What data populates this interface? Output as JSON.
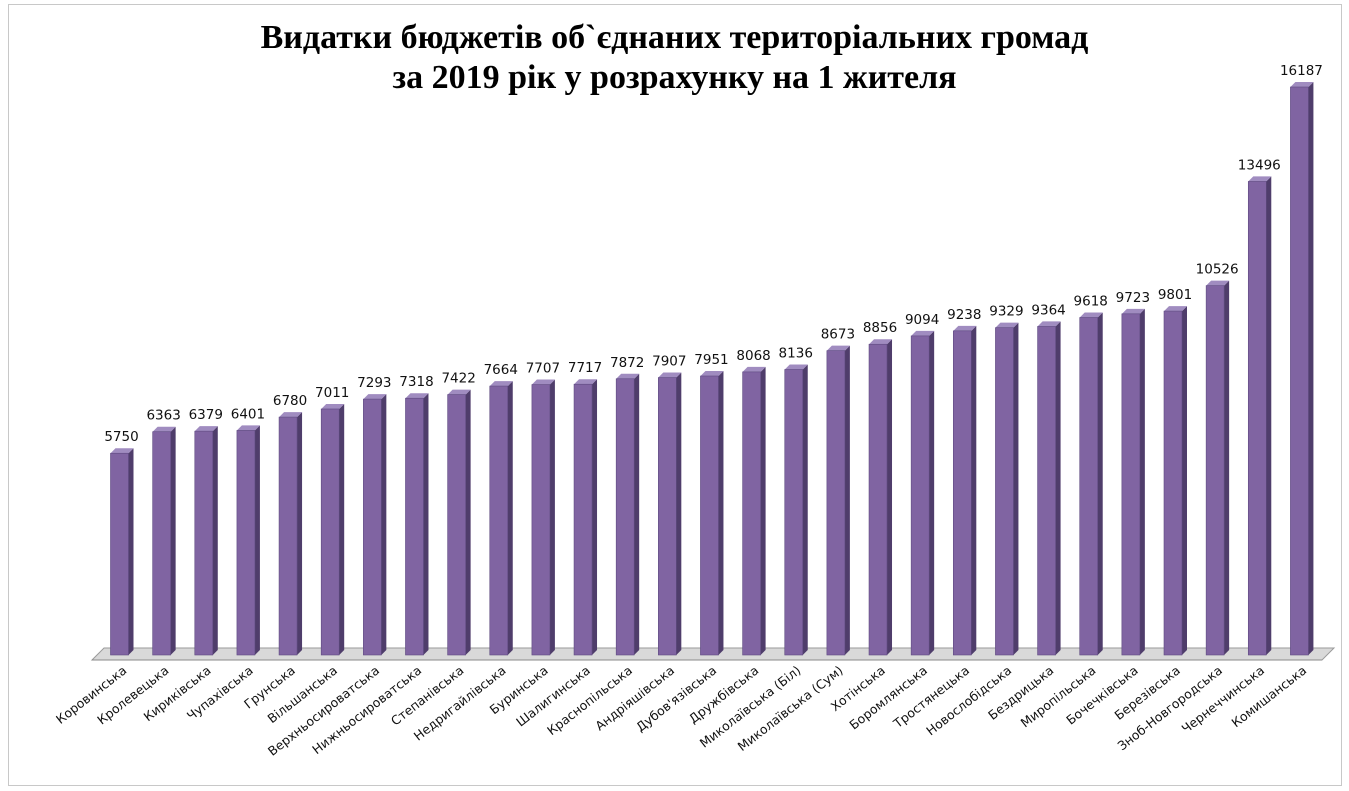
{
  "chart_data": {
    "type": "bar",
    "title": "Видатки бюджетів об`єднаних територіальних громад",
    "subtitle": "за 2019 рік у розрахунку на 1 жителя",
    "xlabel": "",
    "ylabel": "",
    "ylim": [
      0,
      16187
    ],
    "grid": false,
    "legend": "none",
    "categories": [
      "Коровинська",
      "Кролевецька",
      "Кириківська",
      "Чупахівська",
      "Грунська",
      "Вільшанська",
      "Верхньосироватська",
      "Нижньосироватська",
      "Степанівська",
      "Недригайлівська",
      "Буринська",
      "Шалигинська",
      "Краснопільська",
      "Андріяшівська",
      "Дубов'язівська",
      "Дружбівська",
      "Миколаївська (Біл)",
      "Миколаївська (Сум)",
      "Хотінська",
      "Боромлянська",
      "Тростянецька",
      "Новослобідська",
      "Бездрицька",
      "Миропільська",
      "Бочечківська",
      "Березівська",
      "Зноб-Новгородська",
      "Чернеччинська",
      "Комишанська"
    ],
    "values": [
      5750,
      6363,
      6379,
      6401,
      6780,
      7011,
      7293,
      7318,
      7422,
      7664,
      7707,
      7717,
      7872,
      7907,
      7951,
      8068,
      8136,
      8673,
      8856,
      9094,
      9238,
      9329,
      9364,
      9618,
      9723,
      9801,
      10526,
      13496,
      16187
    ],
    "bar_color": "#8064a2",
    "bar_side_color": "#4f3d6b",
    "bar_top_color": "#a08cc0",
    "floor_color": "#d9d9d9"
  }
}
